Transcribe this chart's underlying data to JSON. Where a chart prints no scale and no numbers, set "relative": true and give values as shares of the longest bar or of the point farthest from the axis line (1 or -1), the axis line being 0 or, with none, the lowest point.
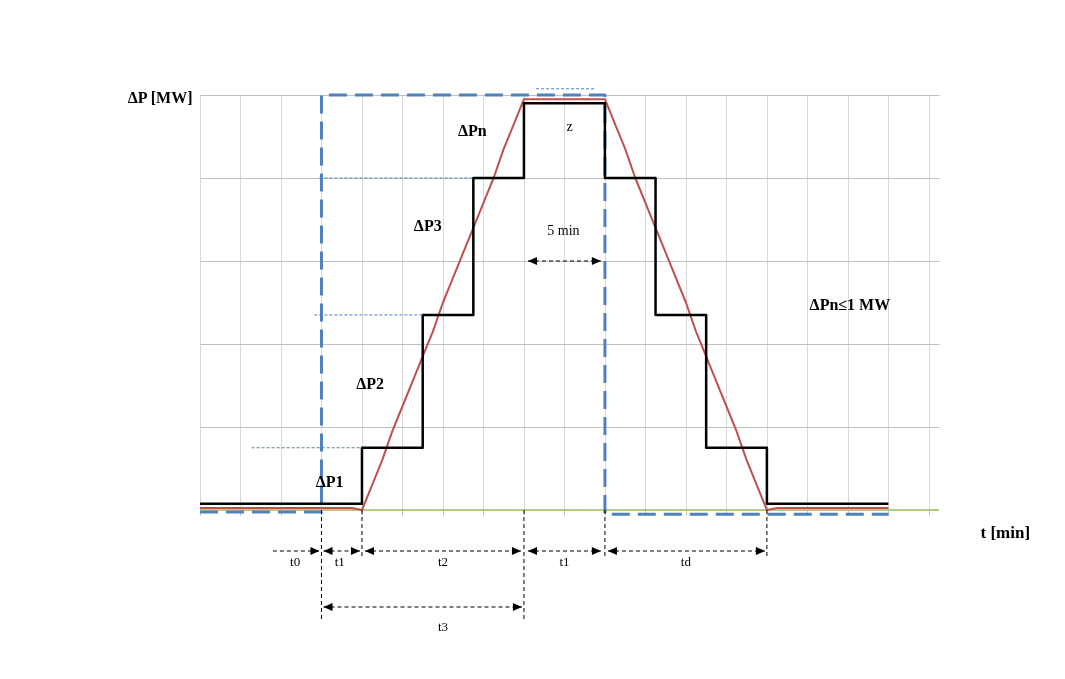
{
  "chart_data": {
    "type": "line",
    "relative": true,
    "grid": true,
    "ylabel": "ΔP [MW]",
    "xlabel": "t [min]",
    "categories": [
      null,
      null,
      null,
      null,
      null,
      null,
      null,
      null,
      null,
      null,
      null,
      null,
      null,
      null,
      null,
      null,
      null,
      null,
      null,
      null,
      null,
      null,
      null,
      null,
      null,
      null,
      null,
      null,
      null,
      null,
      null,
      null,
      null,
      null,
      null,
      null,
      null,
      null,
      null,
      null,
      null,
      null,
      null,
      null,
      null,
      null,
      null,
      null,
      null,
      null,
      null,
      null,
      null,
      null,
      null,
      null,
      null,
      null,
      null,
      null,
      null,
      null,
      null,
      null,
      null,
      null,
      null,
      null,
      null,
      null,
      null,
      null,
      null,
      null
    ],
    "series": [
      {
        "type": "step",
        "color": "#4f81bd",
        "line_style": "dashed",
        "values": [
          -0.005,
          -0.005,
          -0.005,
          -0.005,
          -0.005,
          -0.005,
          -0.005,
          -0.005,
          -0.005,
          -0.005,
          -0.005,
          -0.005,
          1,
          1,
          1,
          1,
          1,
          1,
          1,
          1,
          1,
          1,
          1,
          1,
          1,
          1,
          1,
          1,
          1,
          1,
          1,
          1,
          1,
          1,
          1,
          1,
          1,
          1,
          1,
          1,
          -0.01,
          -0.01,
          -0.01,
          -0.01,
          -0.01,
          -0.01,
          -0.01,
          -0.01,
          -0.01,
          -0.01,
          -0.01,
          -0.01,
          -0.01,
          -0.01,
          -0.01,
          -0.01,
          -0.01,
          -0.01,
          -0.01,
          -0.01,
          -0.01,
          -0.01,
          -0.01,
          -0.01,
          -0.01,
          -0.01,
          -0.01,
          -0.01,
          -0.01,
          null,
          null,
          null,
          null,
          null
        ]
      },
      {
        "type": "line",
        "color": "#c0504d",
        "values": [
          0.005,
          0.005,
          0.005,
          0.005,
          0.005,
          0.005,
          0.005,
          0.005,
          0.005,
          0.005,
          0.005,
          0.005,
          0.005,
          0.005,
          0.005,
          0.005,
          0,
          0.06,
          0.12,
          0.19,
          0.25,
          0.31,
          0.37,
          0.43,
          0.5,
          0.56,
          0.62,
          0.68,
          0.74,
          0.8,
          0.87,
          0.93,
          0.99,
          0.99,
          0.99,
          0.99,
          0.99,
          0.99,
          0.99,
          0.99,
          0.99,
          0.93,
          0.87,
          0.8,
          0.74,
          0.68,
          0.62,
          0.56,
          0.5,
          0.43,
          0.37,
          0.31,
          0.25,
          0.19,
          0.12,
          0.06,
          0,
          0.005,
          0.005,
          0.005,
          0.005,
          0.005,
          0.005,
          0.005,
          0.005,
          0.005,
          0.005,
          0.005,
          0.005,
          null,
          null,
          null,
          null,
          null
        ]
      },
      {
        "type": "step",
        "color": "#000000",
        "values": [
          0.015,
          0.015,
          0.015,
          0.015,
          0.015,
          0.015,
          0.015,
          0.015,
          0.015,
          0.015,
          0.015,
          0.015,
          0.015,
          0.015,
          0.015,
          0.015,
          0.15,
          0.15,
          0.15,
          0.15,
          0.15,
          0.15,
          0.47,
          0.47,
          0.47,
          0.47,
          0.47,
          0.8,
          0.8,
          0.8,
          0.8,
          0.8,
          0.98,
          0.98,
          0.98,
          0.98,
          0.98,
          0.98,
          0.98,
          0.98,
          0.8,
          0.8,
          0.8,
          0.8,
          0.8,
          0.47,
          0.47,
          0.47,
          0.47,
          0.47,
          0.15,
          0.15,
          0.15,
          0.15,
          0.15,
          0.15,
          0.015,
          0.015,
          0.015,
          0.015,
          0.015,
          0.015,
          0.015,
          0.015,
          0.015,
          0.015,
          0.015,
          0.015,
          0.015,
          null,
          null,
          null,
          null,
          null
        ]
      }
    ],
    "ref_lines": [
      {
        "axis": "y",
        "value": 0,
        "color": "#9bbb59"
      }
    ],
    "annotations": [
      "ΔP1",
      "ΔP2",
      "ΔP3",
      "ΔPn",
      "z",
      "5 min",
      "ΔPn≤1 MW",
      "t0",
      "t1",
      "t2",
      "t1",
      "td",
      "t3"
    ]
  }
}
